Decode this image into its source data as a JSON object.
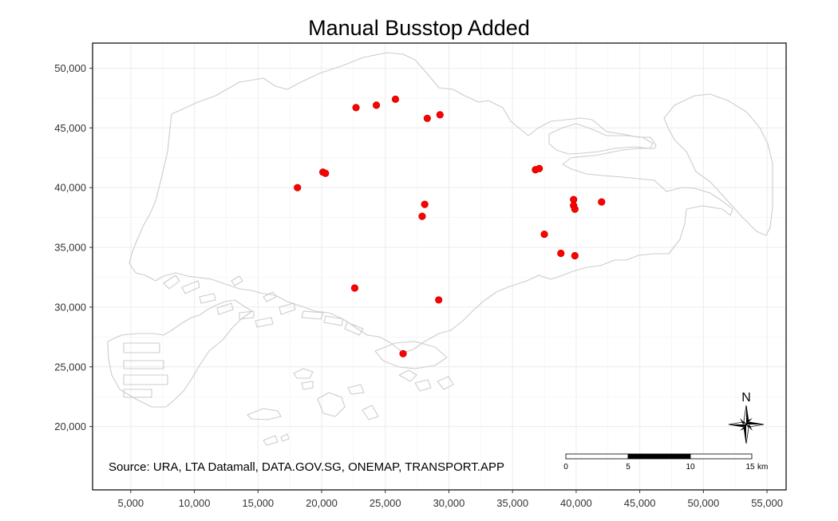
{
  "title": "Manual Busstop Added",
  "source_caption": "Source: URA, LTA Datamall, DATA.GOV.SG, ONEMAP, TRANSPORT.APP",
  "north_arrow_label": "N",
  "scale_bar": {
    "labels": [
      "0",
      "5",
      "10",
      "15"
    ],
    "unit": "km"
  },
  "chart_data": {
    "type": "scatter",
    "title": "Manual Busstop Added",
    "xlim": [
      2000,
      56500
    ],
    "ylim": [
      14700,
      52100
    ],
    "x_ticks": [
      5000,
      10000,
      15000,
      20000,
      25000,
      30000,
      35000,
      40000,
      45000,
      50000,
      55000
    ],
    "x_tick_labels": [
      "5,000",
      "10,000",
      "15,000",
      "20,000",
      "25,000",
      "30,000",
      "35,000",
      "40,000",
      "45,000",
      "50,000",
      "55,000"
    ],
    "y_ticks": [
      20000,
      25000,
      30000,
      35000,
      40000,
      45000,
      50000
    ],
    "y_tick_labels": [
      "20,000",
      "25,000",
      "30,000",
      "35,000",
      "40,000",
      "45,000",
      "50,000"
    ],
    "grid": true,
    "point_color": "#ff0000",
    "points": [
      {
        "x": 22700,
        "y": 46700
      },
      {
        "x": 24300,
        "y": 46900
      },
      {
        "x": 25800,
        "y": 47400
      },
      {
        "x": 28300,
        "y": 45800
      },
      {
        "x": 29300,
        "y": 46100
      },
      {
        "x": 20100,
        "y": 41300
      },
      {
        "x": 20300,
        "y": 41200
      },
      {
        "x": 18100,
        "y": 40000
      },
      {
        "x": 28100,
        "y": 38600
      },
      {
        "x": 27900,
        "y": 37600
      },
      {
        "x": 36800,
        "y": 41500
      },
      {
        "x": 37100,
        "y": 41600
      },
      {
        "x": 39800,
        "y": 39000
      },
      {
        "x": 39800,
        "y": 38500
      },
      {
        "x": 39900,
        "y": 38200
      },
      {
        "x": 42000,
        "y": 38800
      },
      {
        "x": 37500,
        "y": 36100
      },
      {
        "x": 38800,
        "y": 34500
      },
      {
        "x": 39900,
        "y": 34300
      },
      {
        "x": 22600,
        "y": 31600
      },
      {
        "x": 29200,
        "y": 30600
      },
      {
        "x": 26400,
        "y": 26100
      }
    ]
  },
  "colors": {
    "outline": "#cccccc",
    "grid": "#ececec",
    "panel_border": "#000000",
    "text": "#000000",
    "tick_text": "#333333"
  }
}
